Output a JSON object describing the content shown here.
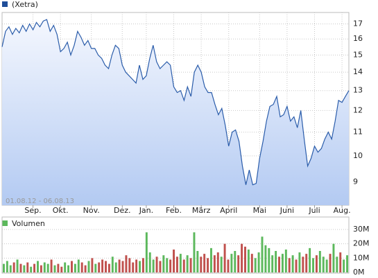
{
  "chart_data": [
    {
      "type": "line",
      "legend": "(Xetra)",
      "color": "#2a5caa",
      "legend_color": "#1f4e99",
      "area_top": "#f4f7fe",
      "area_bottom": "#b3caf2",
      "date_range": "01.08.12 - 06.08.13",
      "log_scale": true,
      "grid": true,
      "values": [
        15.5,
        16.5,
        16.8,
        16.3,
        16.7,
        16.4,
        16.9,
        16.5,
        17.0,
        16.6,
        17.1,
        16.8,
        17.2,
        17.3,
        16.5,
        16.9,
        16.3,
        15.2,
        15.4,
        15.8,
        15.0,
        15.6,
        16.5,
        16.1,
        15.6,
        15.9,
        15.4,
        15.4,
        15.0,
        14.8,
        14.4,
        14.2,
        15.0,
        15.6,
        15.4,
        14.4,
        14.0,
        13.8,
        13.6,
        13.4,
        14.4,
        13.6,
        13.8,
        14.8,
        15.6,
        14.6,
        14.2,
        14.4,
        14.6,
        14.4,
        13.2,
        12.9,
        13.0,
        12.5,
        13.2,
        12.7,
        14.0,
        14.4,
        14.0,
        13.2,
        12.9,
        12.9,
        12.3,
        11.8,
        12.1,
        11.3,
        10.4,
        11.0,
        11.1,
        10.6,
        9.6,
        8.9,
        9.45,
        8.9,
        8.95,
        9.9,
        10.6,
        11.5,
        12.2,
        12.3,
        12.7,
        11.7,
        11.8,
        12.2,
        11.5,
        11.7,
        11.2,
        12.0,
        10.7,
        9.6,
        9.9,
        10.4,
        10.15,
        10.3,
        10.7,
        11.0,
        10.7,
        11.5,
        12.5,
        12.4,
        12.7,
        13.0
      ],
      "xlim": [
        0,
        101
      ],
      "xticks": [
        {
          "value": 9,
          "label": "Sep."
        },
        {
          "value": 17,
          "label": "Okt."
        },
        {
          "value": 26,
          "label": "Nov."
        },
        {
          "value": 35,
          "label": "Dez."
        },
        {
          "value": 42,
          "label": "Jan."
        },
        {
          "value": 50,
          "label": "Feb."
        },
        {
          "value": 58,
          "label": "März"
        },
        {
          "value": 66,
          "label": "April"
        },
        {
          "value": 75,
          "label": "Mai"
        },
        {
          "value": 83,
          "label": "Juni"
        },
        {
          "value": 91,
          "label": "Juli"
        },
        {
          "value": 99,
          "label": "Aug."
        }
      ],
      "ylim": [
        8.2,
        17.8
      ],
      "yticks": [
        9,
        10,
        11,
        12,
        13,
        14,
        15,
        16,
        17
      ]
    },
    {
      "type": "bar",
      "legend": "Volumen",
      "legend_color": "#5cb85c",
      "up_color": "#5cb85c",
      "down_color": "#c0504d",
      "grid": true,
      "values": [
        6,
        8,
        5,
        7,
        9,
        6,
        5,
        7,
        4,
        6,
        8,
        5,
        7,
        6,
        9,
        5,
        6,
        4,
        7,
        5,
        8,
        6,
        9,
        7,
        5,
        8,
        10,
        6,
        7,
        9,
        8,
        6,
        11,
        7,
        9,
        8,
        12,
        10,
        7,
        9,
        8,
        10,
        28,
        14,
        9,
        11,
        8,
        12,
        10,
        9,
        16,
        11,
        13,
        9,
        12,
        10,
        28,
        15,
        11,
        13,
        10,
        17,
        12,
        14,
        11,
        20,
        9,
        13,
        15,
        12,
        20,
        18,
        16,
        13,
        10,
        14,
        25,
        19,
        17,
        12,
        15,
        11,
        13,
        16,
        10,
        12,
        9,
        14,
        11,
        13,
        17,
        10,
        12,
        15,
        11,
        9,
        13,
        20,
        11,
        14,
        9,
        12
      ],
      "ylim": [
        0,
        30
      ],
      "yticks": [
        {
          "value": 0,
          "label": "0M"
        },
        {
          "value": 10,
          "label": "10M"
        },
        {
          "value": 20,
          "label": "20M"
        },
        {
          "value": 30,
          "label": "30M"
        }
      ]
    }
  ]
}
